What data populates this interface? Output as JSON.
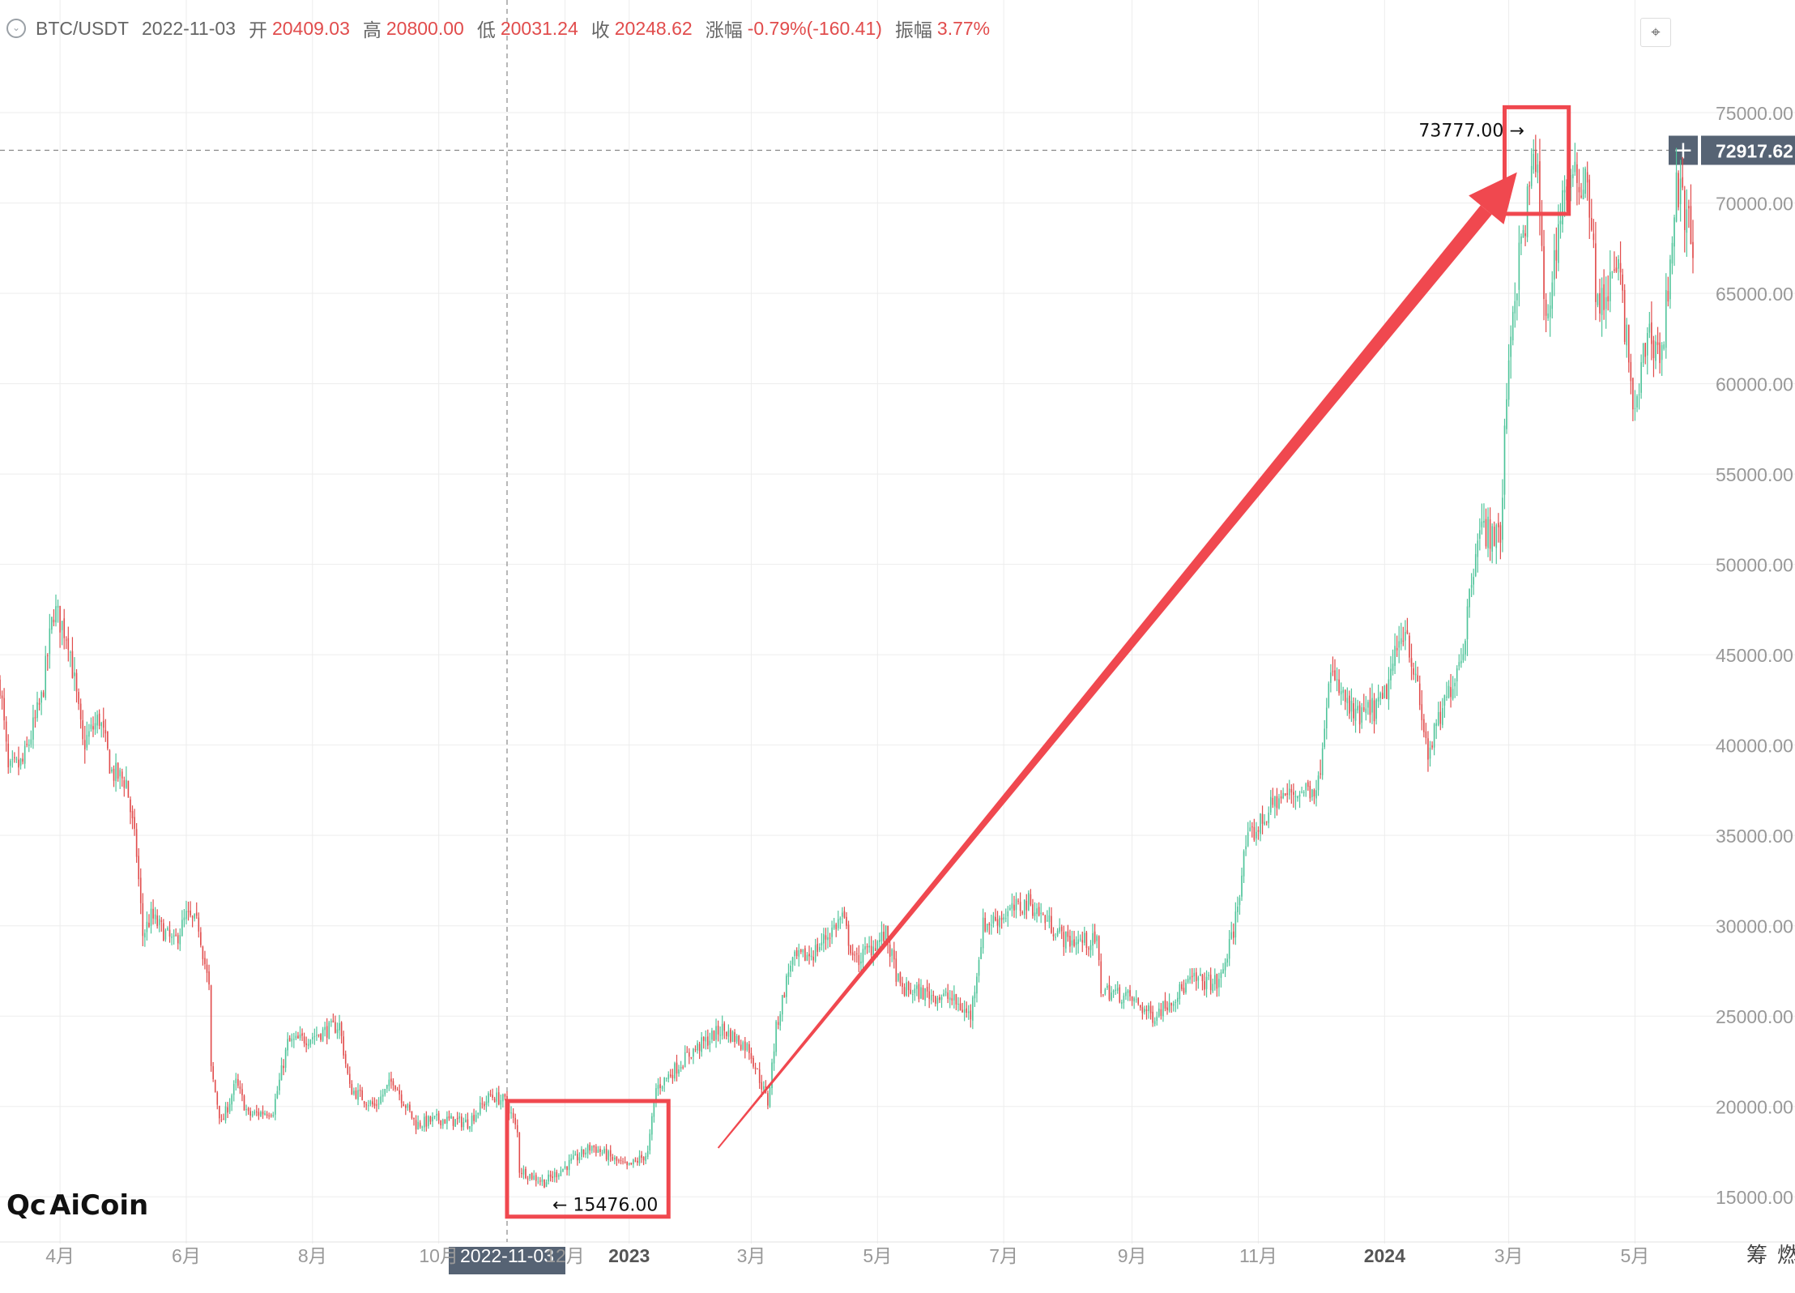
{
  "header": {
    "symbol": "BTC/USDT",
    "date": "2022-11-03",
    "open_label": "开",
    "open": "20409.03",
    "high_label": "高",
    "high": "20800.00",
    "low_label": "低",
    "low": "20031.24",
    "close_label": "收",
    "close": "20248.62",
    "change_label": "涨幅",
    "change": "-0.79%(-160.41)",
    "amplitude_label": "振幅",
    "amplitude": "3.77%",
    "collapse_icon": "chevron-down-icon",
    "fullscreen_icon": "collapse-arrows-icon"
  },
  "logo": {
    "mark": "Qc",
    "text": "AiCoin"
  },
  "colors": {
    "up": "#4fc49a",
    "down": "#e14c4c",
    "annotation": "#f0484f",
    "grid": "#ededed",
    "axis_text": "#999999",
    "tag_bg": "#566374"
  },
  "chart_data": {
    "type": "candlestick",
    "interval": "1D",
    "ylim": [
      12500,
      78500
    ],
    "y_ticks": [
      "75000.00",
      "70000.00",
      "65000.00",
      "60000.00",
      "55000.00",
      "50000.00",
      "45000.00",
      "40000.00",
      "35000.00",
      "30000.00",
      "25000.00",
      "20000.00",
      "15000.00"
    ],
    "y_tick_values": [
      75000,
      70000,
      65000,
      60000,
      55000,
      50000,
      45000,
      40000,
      35000,
      30000,
      25000,
      20000,
      15000
    ],
    "x_ticks": [
      {
        "date": "2022-04-01",
        "label": "4月"
      },
      {
        "date": "2022-06-01",
        "label": "6月"
      },
      {
        "date": "2022-08-01",
        "label": "8月"
      },
      {
        "date": "2022-10-01",
        "label": "10月"
      },
      {
        "date": "2022-12-01",
        "label": "12月"
      },
      {
        "date": "2023-01-01",
        "label": "2023",
        "bold": true
      },
      {
        "date": "2023-03-01",
        "label": "3月"
      },
      {
        "date": "2023-05-01",
        "label": "5月"
      },
      {
        "date": "2023-07-01",
        "label": "7月"
      },
      {
        "date": "2023-09-01",
        "label": "9月"
      },
      {
        "date": "2023-11-01",
        "label": "11月"
      },
      {
        "date": "2024-01-01",
        "label": "2024",
        "bold": true
      },
      {
        "date": "2024-03-01",
        "label": "3月"
      },
      {
        "date": "2024-05-01",
        "label": "5月"
      }
    ],
    "x_start_date": "2022-03-03",
    "x_end_date": "2024-05-29",
    "price_path": [
      [
        "2022-03-03",
        43500
      ],
      [
        "2022-03-07",
        38500
      ],
      [
        "2022-03-14",
        39000
      ],
      [
        "2022-03-23",
        42500
      ],
      [
        "2022-03-29",
        47500
      ],
      [
        "2022-04-05",
        46000
      ],
      [
        "2022-04-12",
        40000
      ],
      [
        "2022-04-20",
        41500
      ],
      [
        "2022-04-26",
        38500
      ],
      [
        "2022-05-03",
        38000
      ],
      [
        "2022-05-08",
        34000
      ],
      [
        "2022-05-11",
        29500
      ],
      [
        "2022-05-15",
        30500
      ],
      [
        "2022-05-26",
        29000
      ],
      [
        "2022-06-01",
        30500
      ],
      [
        "2022-06-07",
        30000
      ],
      [
        "2022-06-12",
        26500
      ],
      [
        "2022-06-13",
        22000
      ],
      [
        "2022-06-18",
        19000
      ],
      [
        "2022-06-25",
        21300
      ],
      [
        "2022-07-01",
        19500
      ],
      [
        "2022-07-13",
        19800
      ],
      [
        "2022-07-20",
        23500
      ],
      [
        "2022-07-30",
        23800
      ],
      [
        "2022-08-14",
        24500
      ],
      [
        "2022-08-19",
        21000
      ],
      [
        "2022-08-31",
        20000
      ],
      [
        "2022-09-09",
        21500
      ],
      [
        "2022-09-13",
        20500
      ],
      [
        "2022-09-20",
        19000
      ],
      [
        "2022-10-01",
        19300
      ],
      [
        "2022-10-15",
        19100
      ],
      [
        "2022-10-26",
        20600
      ],
      [
        "2022-11-03",
        20250
      ],
      [
        "2022-11-08",
        18500
      ],
      [
        "2022-11-09",
        16500
      ],
      [
        "2022-11-21",
        15800
      ],
      [
        "2022-12-05",
        17000
      ],
      [
        "2022-12-14",
        17800
      ],
      [
        "2022-12-31",
        16600
      ],
      [
        "2023-01-10",
        17400
      ],
      [
        "2023-01-14",
        21000
      ],
      [
        "2023-01-31",
        23000
      ],
      [
        "2023-02-15",
        24300
      ],
      [
        "2023-02-28",
        23200
      ],
      [
        "2023-03-09",
        20200
      ],
      [
        "2023-03-13",
        24300
      ],
      [
        "2023-03-20",
        28000
      ],
      [
        "2023-03-31",
        28500
      ],
      [
        "2023-04-14",
        30500
      ],
      [
        "2023-04-20",
        28000
      ],
      [
        "2023-05-05",
        29500
      ],
      [
        "2023-05-12",
        26500
      ],
      [
        "2023-06-05",
        26000
      ],
      [
        "2023-06-15",
        25000
      ],
      [
        "2023-06-21",
        30000
      ],
      [
        "2023-07-13",
        31300
      ],
      [
        "2023-07-31",
        29200
      ],
      [
        "2023-08-15",
        29100
      ],
      [
        "2023-08-17",
        26500
      ],
      [
        "2023-08-31",
        26000
      ],
      [
        "2023-09-11",
        25000
      ],
      [
        "2023-09-30",
        27000
      ],
      [
        "2023-10-13",
        26800
      ],
      [
        "2023-10-20",
        29700
      ],
      [
        "2023-10-26",
        34500
      ],
      [
        "2023-11-10",
        37000
      ],
      [
        "2023-11-30",
        37800
      ],
      [
        "2023-12-05",
        44000
      ],
      [
        "2023-12-18",
        41400
      ],
      [
        "2023-12-31",
        42300
      ],
      [
        "2024-01-11",
        46800
      ],
      [
        "2024-01-22",
        39500
      ],
      [
        "2024-01-31",
        42500
      ],
      [
        "2024-02-08",
        45500
      ],
      [
        "2024-02-15",
        52000
      ],
      [
        "2024-02-26",
        51500
      ],
      [
        "2024-03-01",
        62000
      ],
      [
        "2024-03-05",
        66000
      ],
      [
        "2024-03-14",
        73000
      ],
      [
        "2024-03-19",
        63000
      ],
      [
        "2024-03-27",
        70500
      ],
      [
        "2024-04-08",
        71600
      ],
      [
        "2024-04-13",
        64000
      ],
      [
        "2024-04-23",
        66500
      ],
      [
        "2024-05-01",
        58000
      ],
      [
        "2024-05-07",
        63000
      ],
      [
        "2024-05-14",
        61500
      ],
      [
        "2024-05-21",
        71000
      ],
      [
        "2024-05-29",
        68000
      ]
    ],
    "crosshair": {
      "date": "2022-11-03",
      "price": 72917.62,
      "price_label": "72917.62",
      "date_label": "2022-11-03"
    },
    "annotations": [
      {
        "type": "high",
        "date": "2024-03-14",
        "price": 73777,
        "label": "73777.00 →"
      },
      {
        "type": "low",
        "date": "2022-11-21",
        "price": 15476,
        "label": "← 15476.00"
      }
    ],
    "highlight_boxes": [
      {
        "from": "2022-11-03",
        "to": "2023-01-20",
        "price_high": 20300,
        "price_low": 13900
      },
      {
        "from": "2024-02-28",
        "to": "2024-03-30",
        "price_high": 75300,
        "price_low": 69400
      }
    ],
    "trend_arrow": {
      "from_date": "2023-02-13",
      "from_price": 17700,
      "to_date": "2024-03-05",
      "to_price": 71700
    },
    "right_footer_labels": [
      "筹",
      "燃"
    ]
  }
}
